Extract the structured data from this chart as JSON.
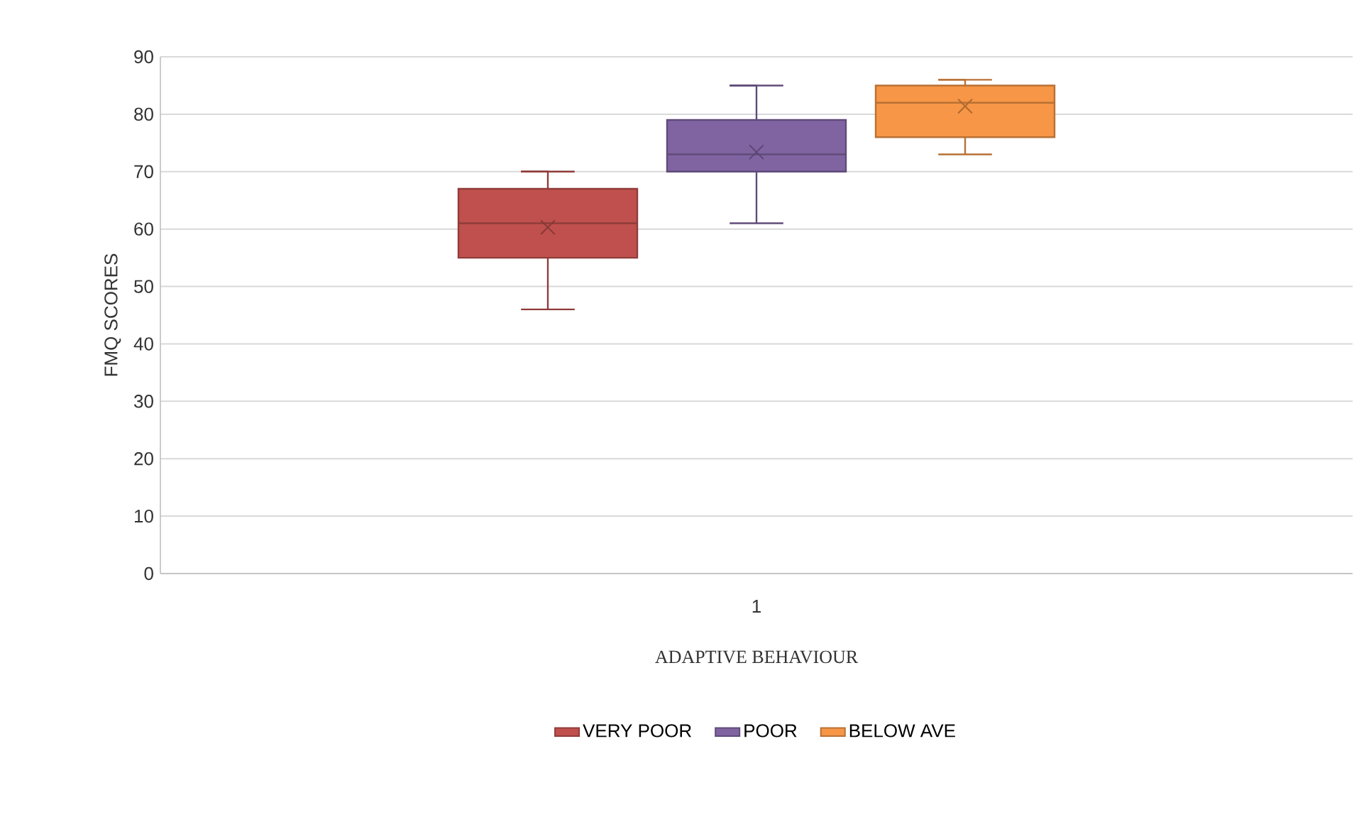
{
  "chart_data": {
    "type": "box",
    "xlabel": "ADAPTIVE BEHAVIOUR",
    "ylabel": "FMQ SCORES",
    "categories": [
      "1"
    ],
    "series": [
      {
        "name": "VERY POOR",
        "color": "#c0504d",
        "boxes": [
          {
            "low": 46,
            "q1": 55,
            "median": 61,
            "q3": 67,
            "high": 70,
            "mean": 60.3
          }
        ]
      },
      {
        "name": "POOR",
        "color": "#8064a2",
        "boxes": [
          {
            "low": 61,
            "q1": 70,
            "median": 73,
            "q3": 79,
            "high": 85,
            "mean": 73.4
          }
        ]
      },
      {
        "name": "BELOW AVE",
        "color": "#f79646",
        "boxes": [
          {
            "low": 73,
            "q1": 76,
            "median": 82,
            "q3": 85,
            "high": 86,
            "mean": 81.4
          }
        ]
      }
    ],
    "ylim": [
      0,
      90
    ],
    "yticks": [
      0,
      10,
      20,
      30,
      40,
      50,
      60,
      70,
      80,
      90
    ],
    "grid": "y",
    "legend": "bottom"
  }
}
